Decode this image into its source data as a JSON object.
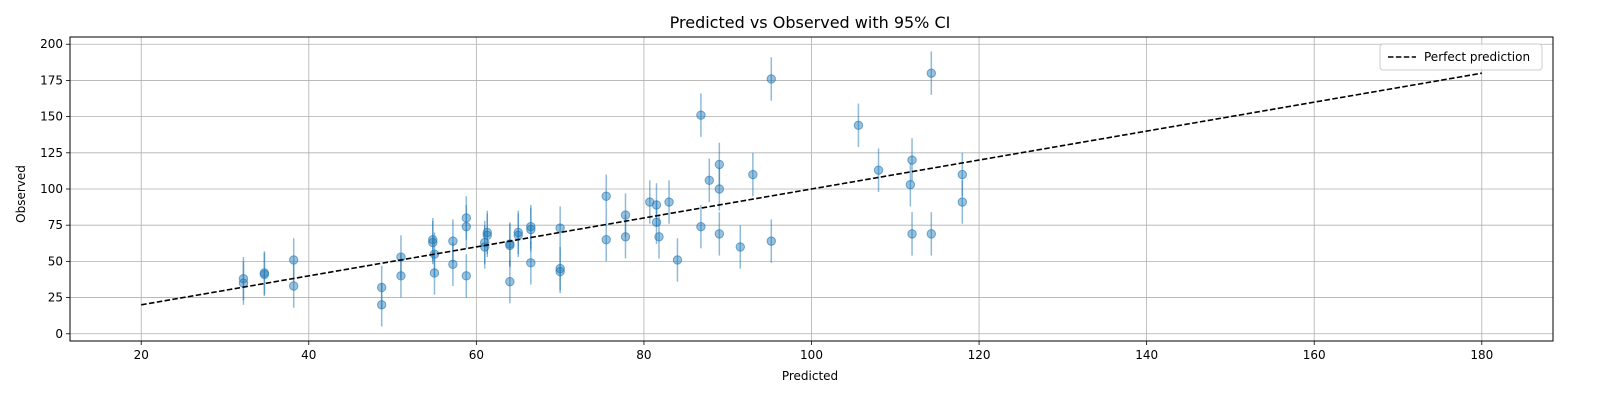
{
  "chart_data": {
    "type": "scatter",
    "title": "Predicted vs Observed with 95% CI",
    "xlabel": "Predicted",
    "ylabel": "Observed",
    "xlim": [
      11.5,
      188.5
    ],
    "ylim": [
      -5,
      205
    ],
    "xticks": [
      20,
      40,
      60,
      80,
      100,
      120,
      140,
      160,
      180
    ],
    "yticks": [
      0,
      25,
      50,
      75,
      100,
      125,
      150,
      175,
      200
    ],
    "grid": true,
    "legend": {
      "position": "top-right",
      "entries": [
        "Perfect prediction"
      ]
    },
    "colors": {
      "points": "#1f77b4",
      "line": "#000000",
      "grid": "#b0b0b0"
    },
    "series": [
      {
        "type": "errorbar-scatter",
        "ci_half_width": 15,
        "points": [
          {
            "x": 32.2,
            "y": 38
          },
          {
            "x": 32.2,
            "y": 35
          },
          {
            "x": 34.7,
            "y": 42
          },
          {
            "x": 34.7,
            "y": 41
          },
          {
            "x": 38.2,
            "y": 51
          },
          {
            "x": 38.2,
            "y": 33
          },
          {
            "x": 48.7,
            "y": 32
          },
          {
            "x": 48.7,
            "y": 20
          },
          {
            "x": 51.0,
            "y": 53
          },
          {
            "x": 51.0,
            "y": 40
          },
          {
            "x": 54.8,
            "y": 65
          },
          {
            "x": 54.8,
            "y": 63
          },
          {
            "x": 55.0,
            "y": 55
          },
          {
            "x": 55.0,
            "y": 42
          },
          {
            "x": 57.2,
            "y": 64
          },
          {
            "x": 57.2,
            "y": 48
          },
          {
            "x": 58.8,
            "y": 80
          },
          {
            "x": 58.8,
            "y": 74
          },
          {
            "x": 58.8,
            "y": 40
          },
          {
            "x": 61.0,
            "y": 63
          },
          {
            "x": 61.0,
            "y": 60
          },
          {
            "x": 61.3,
            "y": 70
          },
          {
            "x": 61.3,
            "y": 68
          },
          {
            "x": 64.0,
            "y": 62
          },
          {
            "x": 64.0,
            "y": 61
          },
          {
            "x": 64.0,
            "y": 36
          },
          {
            "x": 65.0,
            "y": 70
          },
          {
            "x": 65.0,
            "y": 68
          },
          {
            "x": 66.5,
            "y": 74
          },
          {
            "x": 66.5,
            "y": 72
          },
          {
            "x": 66.5,
            "y": 49
          },
          {
            "x": 70.0,
            "y": 73
          },
          {
            "x": 70.0,
            "y": 45
          },
          {
            "x": 70.0,
            "y": 43
          },
          {
            "x": 75.5,
            "y": 95
          },
          {
            "x": 75.5,
            "y": 65
          },
          {
            "x": 77.8,
            "y": 82
          },
          {
            "x": 77.8,
            "y": 67
          },
          {
            "x": 80.7,
            "y": 91
          },
          {
            "x": 81.5,
            "y": 89
          },
          {
            "x": 81.5,
            "y": 77
          },
          {
            "x": 81.8,
            "y": 67
          },
          {
            "x": 83.0,
            "y": 91
          },
          {
            "x": 84.0,
            "y": 51
          },
          {
            "x": 86.8,
            "y": 151
          },
          {
            "x": 86.8,
            "y": 74
          },
          {
            "x": 87.8,
            "y": 106
          },
          {
            "x": 89.0,
            "y": 117
          },
          {
            "x": 89.0,
            "y": 100
          },
          {
            "x": 89.0,
            "y": 69
          },
          {
            "x": 91.5,
            "y": 60
          },
          {
            "x": 93.0,
            "y": 110
          },
          {
            "x": 95.2,
            "y": 176
          },
          {
            "x": 95.2,
            "y": 64
          },
          {
            "x": 105.6,
            "y": 144
          },
          {
            "x": 108.0,
            "y": 113
          },
          {
            "x": 112.0,
            "y": 120
          },
          {
            "x": 111.8,
            "y": 103
          },
          {
            "x": 112.0,
            "y": 69
          },
          {
            "x": 114.3,
            "y": 180
          },
          {
            "x": 114.3,
            "y": 69
          },
          {
            "x": 118.0,
            "y": 110
          },
          {
            "x": 118.0,
            "y": 91
          }
        ]
      },
      {
        "type": "line",
        "name": "Perfect prediction",
        "style": "dashed",
        "x": [
          20,
          180
        ],
        "y": [
          20,
          180
        ]
      }
    ]
  }
}
